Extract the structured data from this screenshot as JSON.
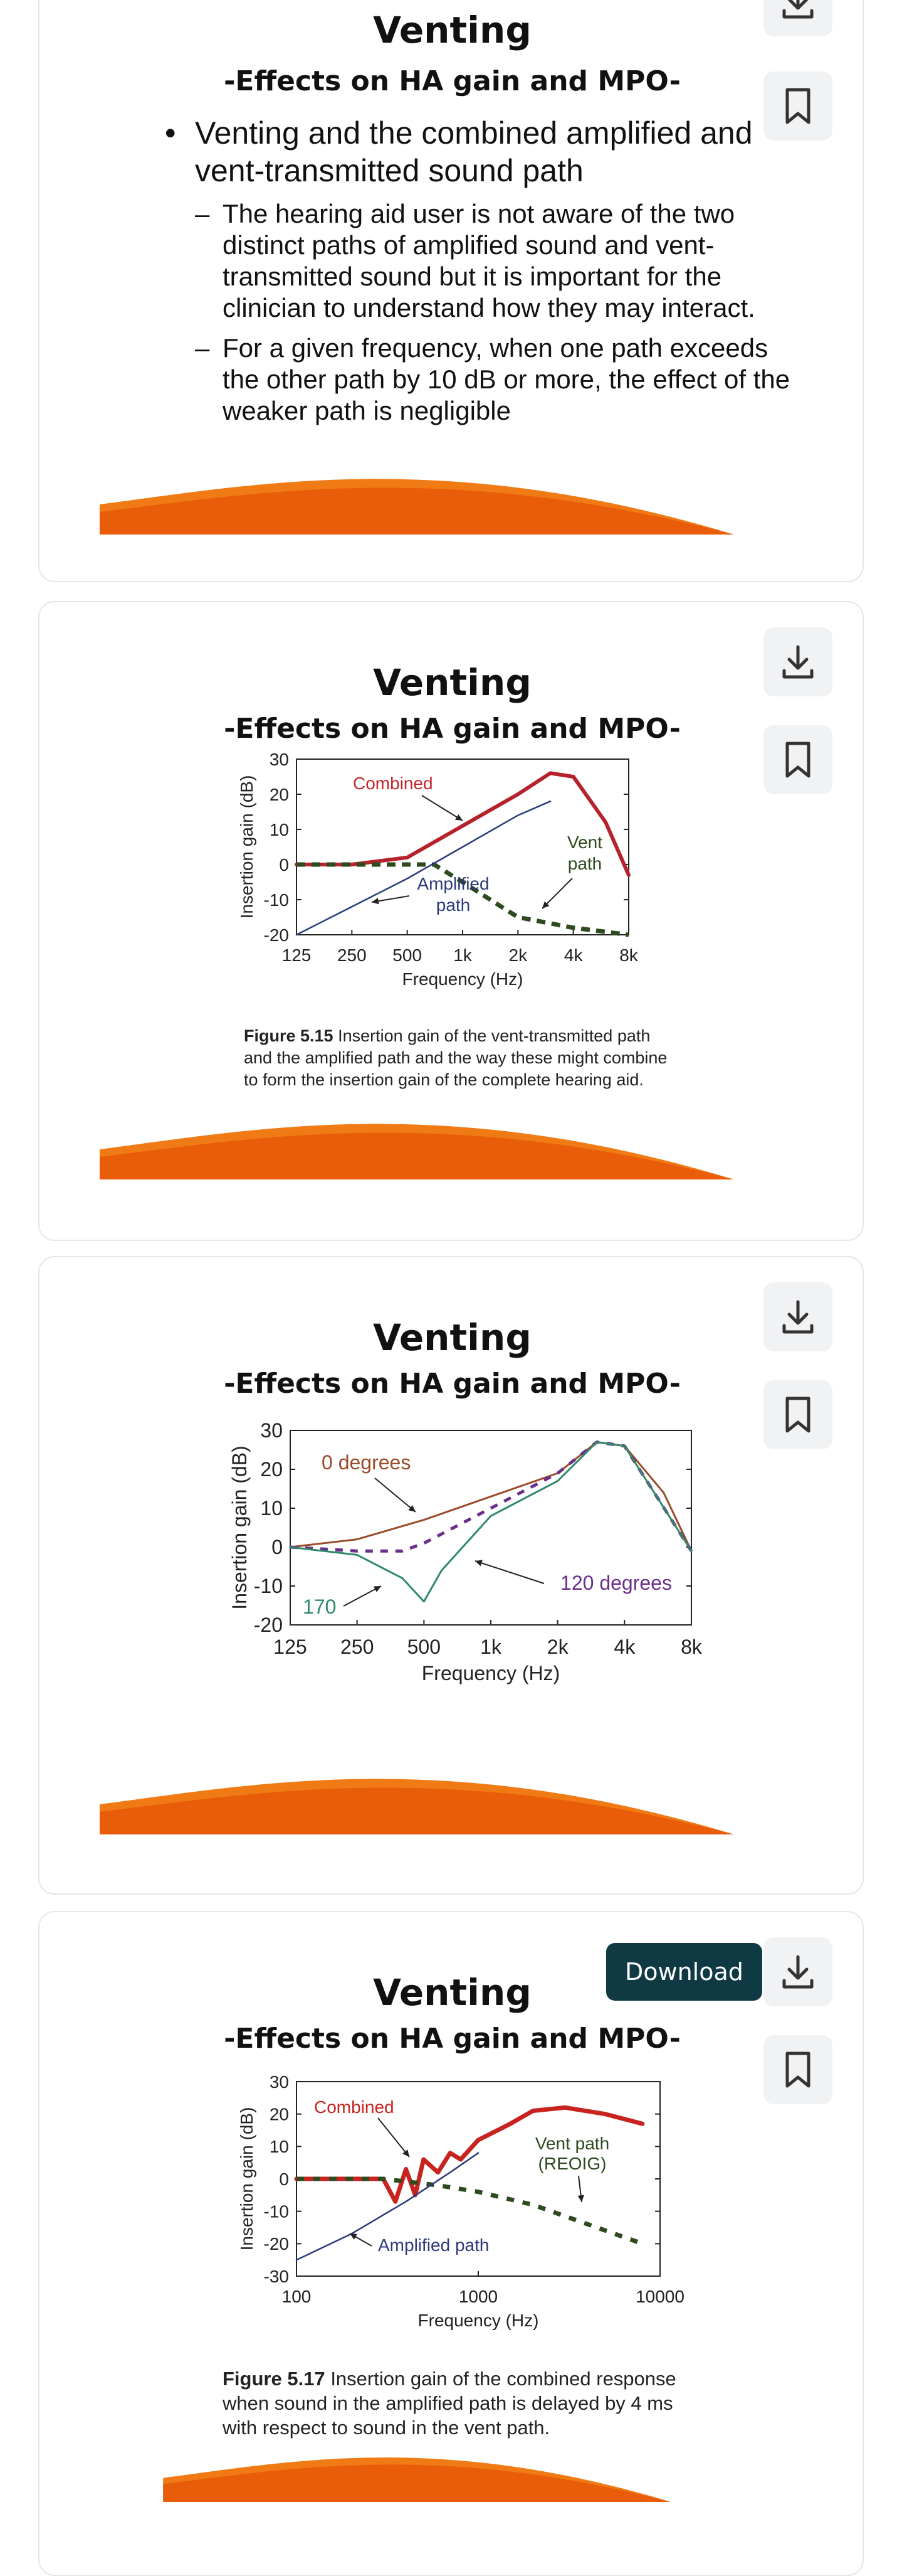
{
  "tooltip": {
    "download_label": "Download"
  },
  "slides": [
    {
      "title": "Venting",
      "subtitle": "-Effects on HA gain and MPO-",
      "bullet": "Venting and the combined amplified and vent-transmitted sound path",
      "sub_bullets": [
        "The hearing aid user is not aware of the two distinct paths of amplified sound and vent-transmitted sound but it is important for the clinician to understand how they may interact.",
        "For a given frequency, when one path exceeds the other path by 10 dB or more, the effect of the weaker path is negligible"
      ]
    },
    {
      "title": "Venting",
      "subtitle": "-Effects on HA gain and MPO-",
      "caption_label": "Figure 5.15",
      "caption_text": "Insertion gain of the vent-transmitted path and the amplified path and the way these might combine to form the insertion gain of the complete hearing aid."
    },
    {
      "title": "Venting",
      "subtitle": "-Effects on HA gain and MPO-"
    },
    {
      "title": "Venting",
      "subtitle": "-Effects on HA gain and MPO-",
      "caption_label": "Figure 5.17",
      "caption_text": "Insertion gain of the combined response when sound in the amplified path is delayed by 4 ms with respect to sound in the vent path."
    }
  ],
  "chart_data": [
    {
      "type": "line",
      "ylabel": "Insertion gain (dB)",
      "xlabel": "Frequency (Hz)",
      "ylim": [
        -20,
        30
      ],
      "yticks": [
        "30",
        "20",
        "10",
        "0",
        "-10",
        "-20"
      ],
      "xticks": [
        "125",
        "250",
        "500",
        "1k",
        "2k",
        "4k",
        "8k"
      ],
      "annotations": [
        "Combined",
        "Vent",
        "path",
        "Amplified",
        "path"
      ],
      "series": [
        {
          "name": "Combined",
          "color": "#b5222b",
          "x": [
            125,
            250,
            500,
            1000,
            2000,
            3000,
            4000,
            6000,
            8000
          ],
          "y": [
            0,
            0,
            2,
            11,
            20,
            26,
            25,
            12,
            -3
          ]
        },
        {
          "name": "Vent path",
          "color": "#2e4a1e",
          "x": [
            125,
            250,
            500,
            700,
            1000,
            2000,
            4000,
            8000
          ],
          "y": [
            0,
            0,
            0,
            0,
            -5,
            -15,
            -18,
            -20
          ]
        },
        {
          "name": "Amplified path",
          "color": "#2b3a7a",
          "x": [
            125,
            250,
            500,
            1000,
            2000,
            3000
          ],
          "y": [
            -20,
            -12,
            -4,
            5,
            14,
            18
          ]
        }
      ]
    },
    {
      "type": "line",
      "ylabel": "Insertion gain (dB)",
      "xlabel": "Frequency (Hz)",
      "ylim": [
        -20,
        30
      ],
      "yticks": [
        "30",
        "20",
        "10",
        "0",
        "-10",
        "-20"
      ],
      "xticks": [
        "125",
        "250",
        "500",
        "1k",
        "2k",
        "4k",
        "8k"
      ],
      "annotations": [
        "0 degrees",
        "120 degrees",
        "170"
      ],
      "series": [
        {
          "name": "0 degrees",
          "color": "#9b4b2a",
          "x": [
            125,
            250,
            500,
            1000,
            2000,
            3000,
            4000,
            6000,
            8000
          ],
          "y": [
            0,
            2,
            7,
            13,
            19,
            27,
            26,
            14,
            -1
          ]
        },
        {
          "name": "120 degrees",
          "color": "#6b2f8a",
          "x": [
            125,
            250,
            400,
            500,
            1000,
            2000,
            3000,
            4000,
            8000
          ],
          "y": [
            0,
            -1,
            -1,
            1,
            10,
            19,
            27,
            26,
            -1
          ]
        },
        {
          "name": "170",
          "color": "#2f8a6a",
          "x": [
            125,
            250,
            400,
            500,
            600,
            1000,
            2000,
            3000,
            4000,
            8000
          ],
          "y": [
            0,
            -2,
            -8,
            -14,
            -6,
            8,
            17,
            27,
            26,
            -1
          ]
        }
      ]
    },
    {
      "type": "line",
      "ylabel": "Insertion gain (dB)",
      "xlabel": "Frequency (Hz)",
      "ylim": [
        -30,
        30
      ],
      "yticks": [
        "30",
        "20",
        "10",
        "0",
        "-10",
        "-20",
        "-30"
      ],
      "xticks": [
        "100",
        "1000",
        "10000"
      ],
      "annotations": [
        "Combined",
        "Vent path",
        "(REOIG)",
        "Amplified path"
      ],
      "series": [
        {
          "name": "Combined",
          "color": "#c8231f",
          "x": [
            100,
            200,
            300,
            350,
            400,
            450,
            500,
            600,
            700,
            800,
            1000,
            1500,
            2000,
            3000,
            5000,
            8000
          ],
          "y": [
            0,
            0,
            0,
            -7,
            3,
            -5,
            6,
            2,
            8,
            6,
            12,
            17,
            21,
            22,
            20,
            17
          ]
        },
        {
          "name": "Vent path (REOIG)",
          "color": "#2e4a1e",
          "x": [
            100,
            300,
            600,
            1000,
            2000,
            4000,
            8000
          ],
          "y": [
            0,
            0,
            -2,
            -4,
            -8,
            -14,
            -20
          ]
        },
        {
          "name": "Amplified path",
          "color": "#2b3a7a",
          "x": [
            100,
            200,
            400,
            700,
            1000
          ],
          "y": [
            -25,
            -17,
            -7,
            2,
            8
          ]
        }
      ]
    }
  ]
}
